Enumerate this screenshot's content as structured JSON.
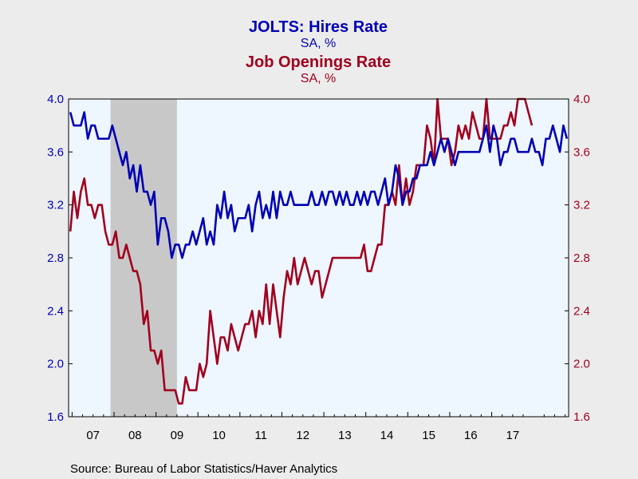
{
  "titles": {
    "series1_title": "JOLTS: Hires Rate",
    "series1_unit": "SA, %",
    "series2_title": "Job Openings Rate",
    "series2_unit": "SA, %"
  },
  "source": "Source:  Bureau of Labor Statistics/Haver Analytics",
  "colors": {
    "series1": "#0000b4",
    "series2": "#a0001e",
    "plot_bg": "#eef6ff",
    "recession": "#c8c8c8",
    "page_bg": "#ececec"
  },
  "chart_data": {
    "type": "line",
    "x_start": "2006-12",
    "frequency": "monthly",
    "x_tick_labels": [
      "07",
      "08",
      "09",
      "10",
      "11",
      "12",
      "13",
      "14",
      "15",
      "16",
      "17"
    ],
    "ylim_left": [
      1.6,
      4.0
    ],
    "ylim_right": [
      1.6,
      4.0
    ],
    "y_ticks": [
      "1.6",
      "2.0",
      "2.4",
      "2.8",
      "3.2",
      "3.6",
      "4.0"
    ],
    "recession_shading": {
      "start": "2007-12",
      "end": "2009-06"
    },
    "grid": false,
    "series": [
      {
        "name": "JOLTS: Hires Rate",
        "axis": "left",
        "values": [
          3.9,
          3.8,
          3.8,
          3.8,
          3.9,
          3.7,
          3.8,
          3.8,
          3.7,
          3.7,
          3.7,
          3.7,
          3.8,
          3.7,
          3.6,
          3.5,
          3.6,
          3.4,
          3.5,
          3.3,
          3.5,
          3.3,
          3.3,
          3.2,
          3.3,
          2.9,
          3.1,
          3.1,
          3.0,
          2.8,
          2.9,
          2.9,
          2.8,
          2.9,
          2.9,
          3.0,
          2.9,
          3.0,
          3.1,
          2.9,
          3.0,
          2.9,
          3.2,
          3.1,
          3.3,
          3.1,
          3.2,
          3.0,
          3.1,
          3.1,
          3.1,
          3.2,
          3.0,
          3.2,
          3.3,
          3.1,
          3.2,
          3.1,
          3.3,
          3.1,
          3.3,
          3.2,
          3.2,
          3.3,
          3.2,
          3.2,
          3.2,
          3.2,
          3.2,
          3.3,
          3.2,
          3.2,
          3.3,
          3.2,
          3.3,
          3.3,
          3.2,
          3.3,
          3.2,
          3.3,
          3.2,
          3.2,
          3.3,
          3.2,
          3.3,
          3.2,
          3.3,
          3.3,
          3.2,
          3.3,
          3.4,
          3.2,
          3.3,
          3.5,
          3.4,
          3.2,
          3.3,
          3.3,
          3.4,
          3.4,
          3.5,
          3.5,
          3.5,
          3.6,
          3.5,
          3.6,
          3.7,
          3.6,
          3.7,
          3.6,
          3.5,
          3.6,
          3.6,
          3.6,
          3.6,
          3.6,
          3.6,
          3.6,
          3.7,
          3.8,
          3.6,
          3.8,
          3.7,
          3.5,
          3.6,
          3.6,
          3.7,
          3.7,
          3.6,
          3.6,
          3.6,
          3.6,
          3.7,
          3.6,
          3.6,
          3.5,
          3.7,
          3.7,
          3.8,
          3.7,
          3.6,
          3.8,
          3.7
        ]
      },
      {
        "name": "Job Openings Rate",
        "axis": "right",
        "values": [
          3.0,
          3.3,
          3.1,
          3.3,
          3.4,
          3.2,
          3.2,
          3.1,
          3.2,
          3.2,
          3.0,
          2.9,
          2.9,
          3.0,
          2.8,
          2.8,
          2.9,
          2.8,
          2.7,
          2.7,
          2.6,
          2.3,
          2.4,
          2.1,
          2.1,
          2.0,
          2.1,
          1.8,
          1.8,
          1.8,
          1.8,
          1.7,
          1.7,
          1.9,
          1.8,
          1.8,
          1.8,
          2.0,
          1.9,
          2.0,
          2.4,
          2.2,
          2.0,
          2.2,
          2.2,
          2.1,
          2.3,
          2.2,
          2.1,
          2.2,
          2.3,
          2.3,
          2.4,
          2.2,
          2.4,
          2.3,
          2.6,
          2.3,
          2.6,
          2.4,
          2.2,
          2.5,
          2.7,
          2.6,
          2.8,
          2.6,
          2.7,
          2.8,
          2.7,
          2.6,
          2.7,
          2.7,
          2.5,
          2.6,
          2.7,
          2.8,
          2.8,
          2.8,
          2.8,
          2.8,
          2.8,
          2.8,
          2.8,
          2.8,
          2.9,
          2.7,
          2.7,
          2.8,
          2.9,
          2.9,
          3.2,
          3.2,
          3.3,
          3.2,
          3.5,
          3.2,
          3.4,
          3.2,
          3.3,
          3.5,
          3.5,
          3.5,
          3.8,
          3.7,
          3.5,
          4.0,
          3.7,
          3.7,
          3.7,
          3.5,
          3.6,
          3.8,
          3.7,
          3.8,
          3.7,
          3.9,
          3.8,
          3.7,
          3.7,
          4.0,
          3.7,
          3.7,
          3.7,
          3.7,
          3.8,
          3.8,
          3.9,
          3.8,
          4.0,
          4.0,
          4.0,
          3.9,
          3.8
        ]
      }
    ]
  }
}
